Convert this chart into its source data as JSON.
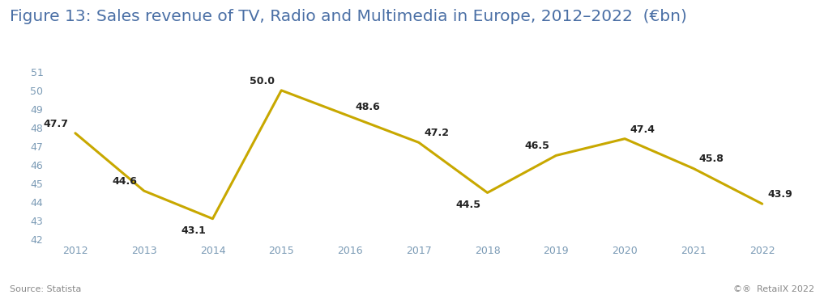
{
  "title": "Figure 13: Sales revenue of TV, Radio and Multimedia in Europe, 2012–2022  (€bn)",
  "years": [
    2012,
    2013,
    2014,
    2015,
    2016,
    2017,
    2018,
    2019,
    2020,
    2021,
    2022
  ],
  "values": [
    47.7,
    44.6,
    43.1,
    50.0,
    48.6,
    47.2,
    44.5,
    46.5,
    47.4,
    45.8,
    43.9
  ],
  "line_color": "#C8A800",
  "line_width": 2.2,
  "ylim": [
    42,
    51
  ],
  "yticks": [
    42,
    43,
    44,
    45,
    46,
    47,
    48,
    49,
    50,
    51
  ],
  "source_text": "Source: Statista",
  "footer_text": "©®  RetailX 2022",
  "bg_color": "#ffffff",
  "title_fontsize": 14.5,
  "label_fontsize": 9.0,
  "axis_fontsize": 9.0,
  "source_fontsize": 8.0,
  "footer_fontsize": 8.0,
  "title_color": "#4a6fa5",
  "tick_color": "#7a9ab5",
  "label_color": "#222222",
  "source_color": "#888888",
  "annotation_offsets": {
    "2012": [
      -0.1,
      0.22,
      "right",
      "bottom"
    ],
    "2013": [
      -0.1,
      0.22,
      "right",
      "bottom"
    ],
    "2014": [
      -0.1,
      -0.35,
      "right",
      "top"
    ],
    "2015": [
      -0.1,
      0.22,
      "right",
      "bottom"
    ],
    "2016": [
      0.08,
      0.22,
      "left",
      "bottom"
    ],
    "2017": [
      0.08,
      0.22,
      "left",
      "bottom"
    ],
    "2018": [
      -0.1,
      -0.35,
      "right",
      "top"
    ],
    "2019": [
      -0.1,
      0.22,
      "right",
      "bottom"
    ],
    "2020": [
      0.08,
      0.22,
      "left",
      "bottom"
    ],
    "2021": [
      0.08,
      0.22,
      "left",
      "bottom"
    ],
    "2022": [
      0.08,
      0.22,
      "left",
      "bottom"
    ]
  }
}
